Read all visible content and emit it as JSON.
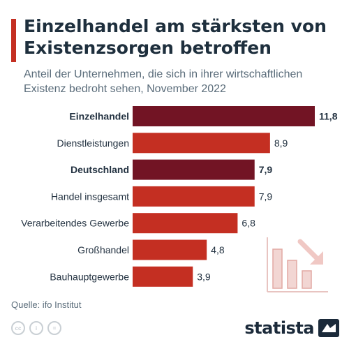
{
  "header": {
    "title": "Einzelhandel am stärksten von Existenzsorgen betroffen",
    "subtitle": "Anteil der Unternehmen, die sich in ihrer wirtschaftlichen Existenz bedroht sehen, November 2022"
  },
  "footer": {
    "source": "Quelle: ifo Institut",
    "logo": "statista",
    "license_icons": [
      "cc-icon",
      "attribution-icon",
      "no-derivatives-icon"
    ]
  },
  "colors": {
    "highlight": "#721424",
    "bar": "#c42f22",
    "title": "#1e2f3d",
    "text": "#233241"
  },
  "chart_data": {
    "type": "bar",
    "orientation": "horizontal",
    "categories": [
      "Einzelhandel",
      "Dienstleistungen",
      "Deutschland",
      "Handel insgesamt",
      "Verarbeitendes Gewerbe",
      "Großhandel",
      "Bauhauptgewerbe"
    ],
    "values": [
      11.8,
      8.9,
      7.9,
      7.9,
      6.8,
      4.8,
      3.9
    ],
    "value_labels": [
      "11,8",
      "8,9",
      "7,9",
      "7,9",
      "6,8",
      "4,8",
      "3,9"
    ],
    "highlighted": [
      true,
      false,
      true,
      false,
      false,
      false,
      false
    ],
    "xlim": [
      0,
      11.8
    ],
    "grid": false,
    "legend": "none"
  }
}
